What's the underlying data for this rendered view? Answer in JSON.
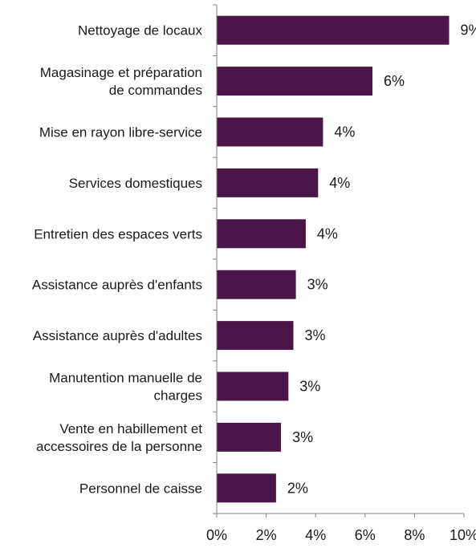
{
  "chart_data": {
    "type": "bar",
    "orientation": "horizontal",
    "categories": [
      [
        "Nettoyage de locaux"
      ],
      [
        "Magasinage et préparation",
        "de commandes"
      ],
      [
        "Mise en rayon libre-service"
      ],
      [
        "Services domestiques"
      ],
      [
        "Entretien des espaces verts"
      ],
      [
        "Assistance auprès d'enfants"
      ],
      [
        "Assistance auprès d'adultes"
      ],
      [
        "Manutention manuelle de",
        "charges"
      ],
      [
        "Vente en habillement et",
        "accessoires de la personne"
      ],
      [
        "Personnel de caisse"
      ]
    ],
    "values": [
      9.4,
      6.3,
      4.3,
      4.1,
      3.6,
      3.2,
      3.1,
      2.9,
      2.6,
      2.4
    ],
    "value_labels": [
      "9%",
      "6%",
      "4%",
      "4%",
      "4%",
      "3%",
      "3%",
      "3%",
      "3%",
      "2%"
    ],
    "xlim": [
      0,
      10
    ],
    "x_ticks": [
      0,
      2,
      4,
      6,
      8,
      10
    ],
    "x_tick_labels": [
      "0%",
      "2%",
      "4%",
      "6%",
      "8%",
      "10%"
    ],
    "title": "",
    "xlabel": "",
    "ylabel": "",
    "grid": false,
    "bar_color": "#4a1548"
  }
}
